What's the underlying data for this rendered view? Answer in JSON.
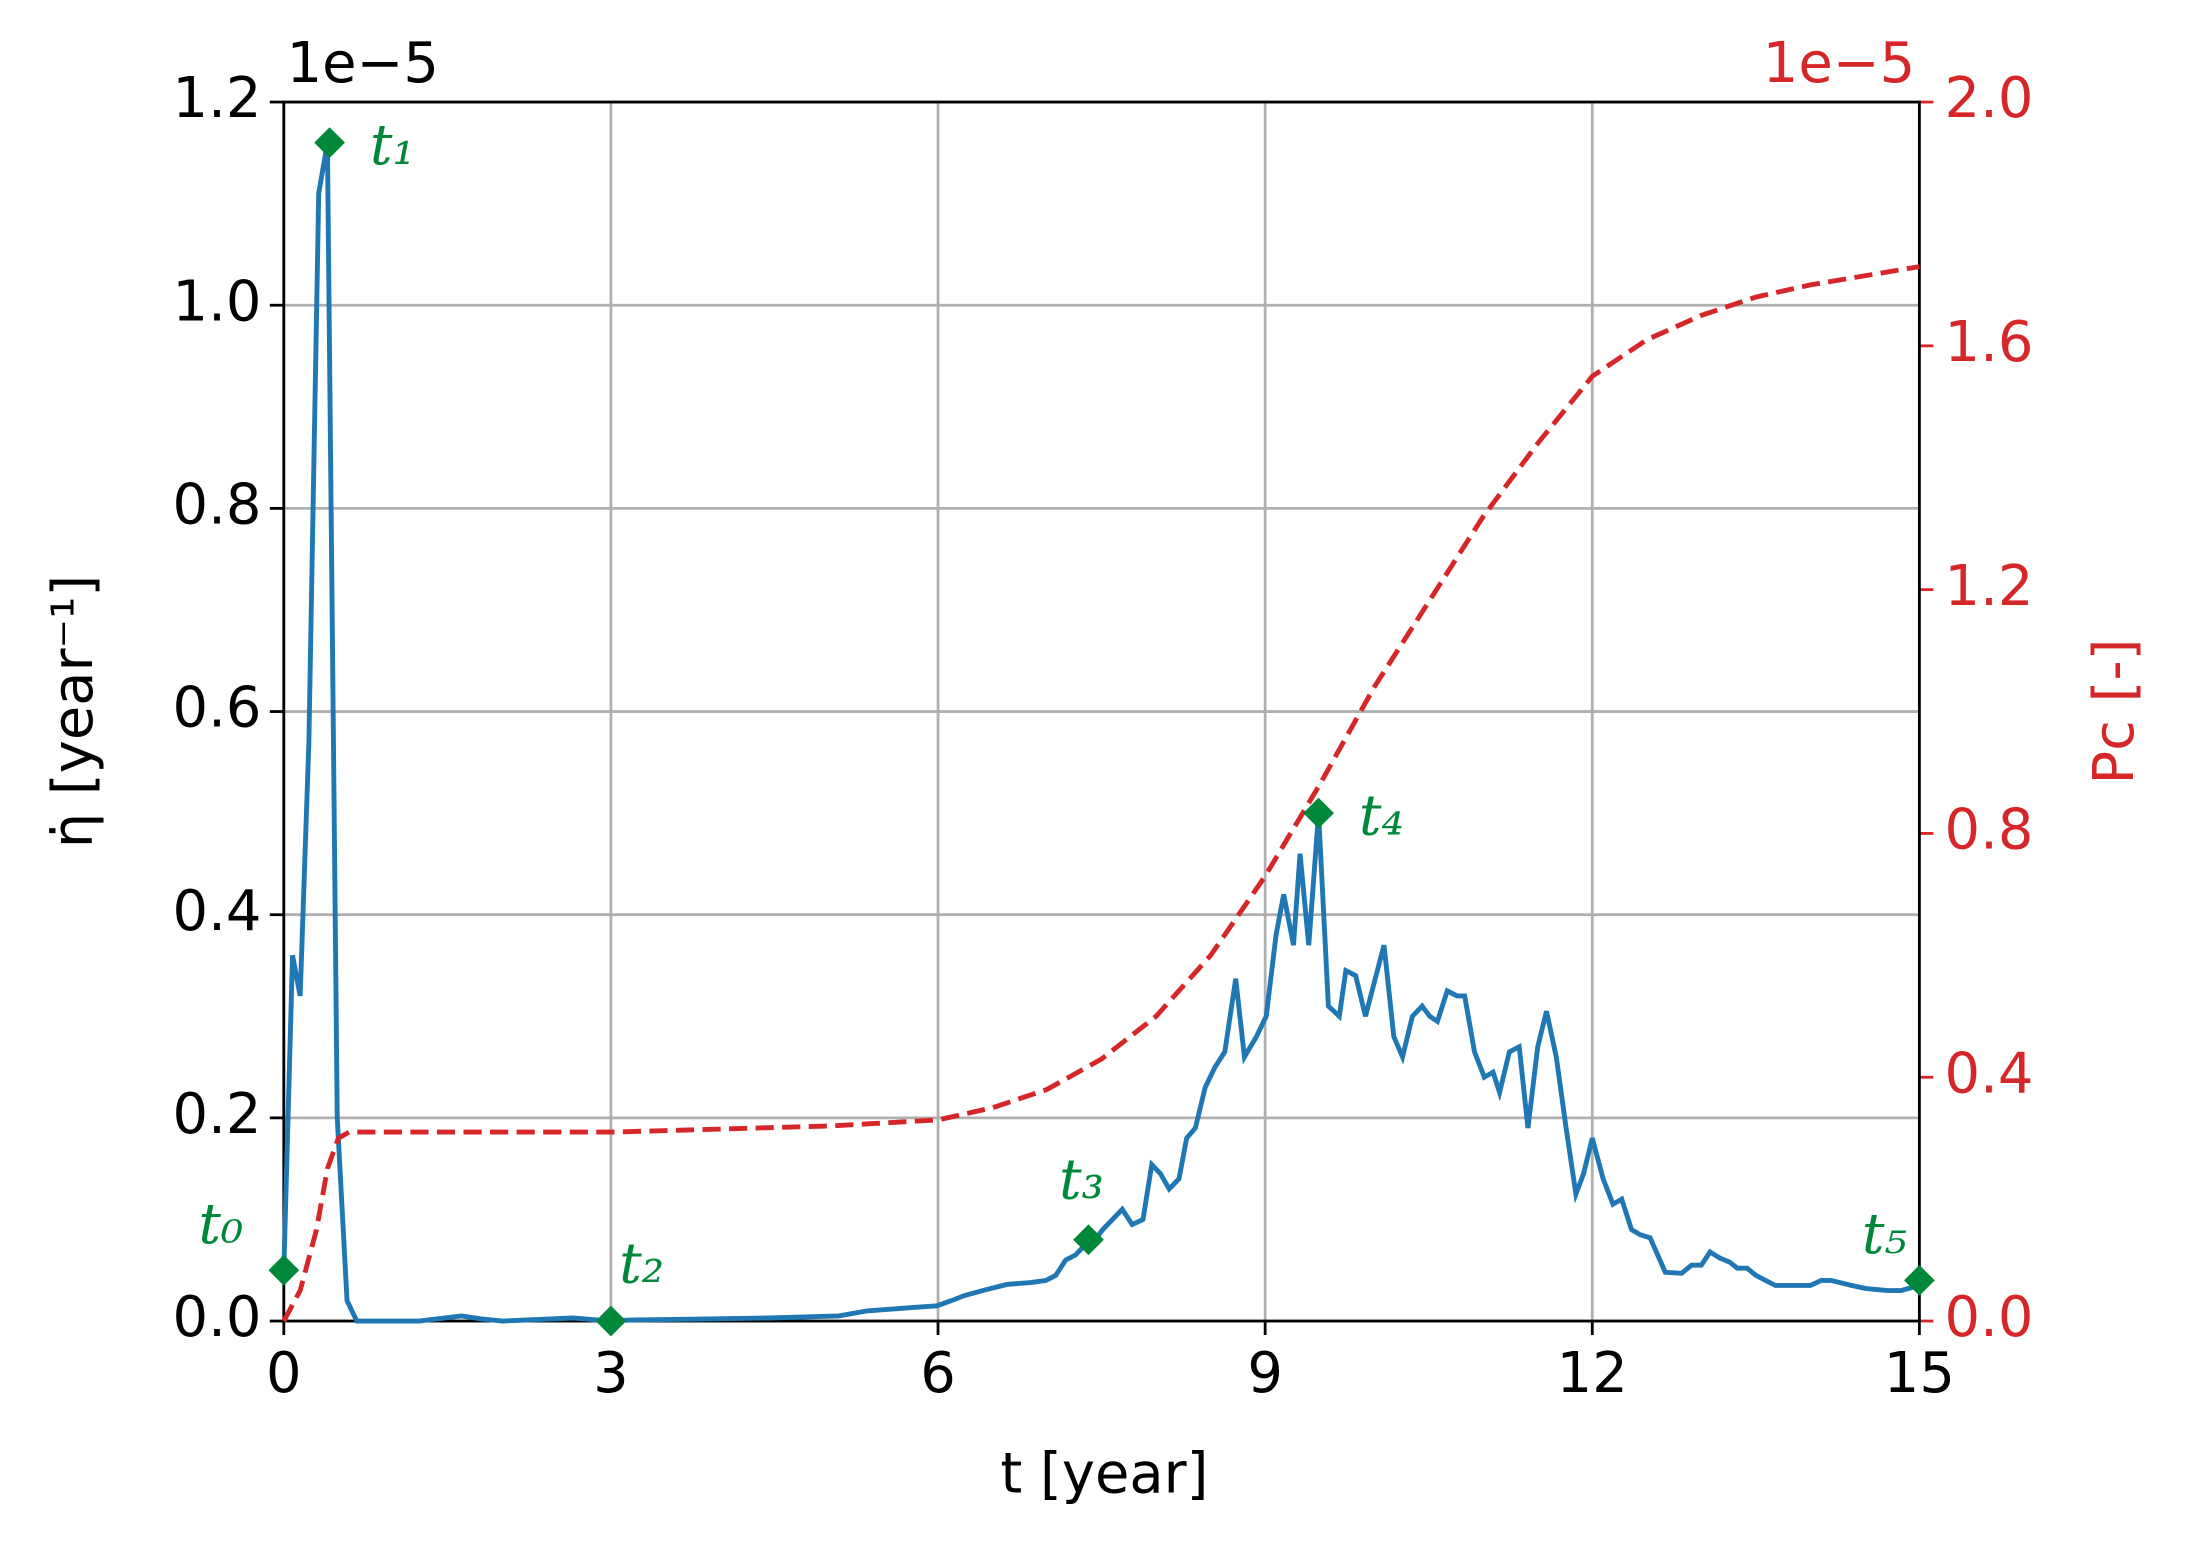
{
  "chart_data": {
    "type": "line",
    "x_label": "t [year]",
    "y_label": "η̇ [year⁻¹]",
    "y2_label": "Pc [-]",
    "y_offset_text": "1e−5",
    "y2_offset_text": "1e−5",
    "xlim": [
      0,
      15
    ],
    "xticks": [
      0,
      3,
      6,
      9,
      12,
      15
    ],
    "ylim": [
      0,
      1.2
    ],
    "yticks": [
      {
        "value": 0,
        "label": "0.0"
      },
      {
        "value": 0.2,
        "label": "0.2"
      },
      {
        "value": 0.4,
        "label": "0.4"
      },
      {
        "value": 0.6,
        "label": "0.6"
      },
      {
        "value": 0.8,
        "label": "0.8"
      },
      {
        "value": 1.0,
        "label": "1.0"
      },
      {
        "value": 1.2,
        "label": "1.2"
      }
    ],
    "y2lim": [
      0,
      2.0
    ],
    "y2ticks": [
      {
        "value": 0,
        "label": "0.0"
      },
      {
        "value": 0.4,
        "label": "0.4"
      },
      {
        "value": 0.8,
        "label": "0.8"
      },
      {
        "value": 1.2,
        "label": "1.2"
      },
      {
        "value": 1.6,
        "label": "1.6"
      },
      {
        "value": 2.0,
        "label": "2.0"
      }
    ],
    "y2_color": "#d62728",
    "grid": true,
    "series": [
      {
        "color": "#1f77b4",
        "dash": false,
        "x": [
          0,
          0.08,
          0.15,
          0.23,
          0.32,
          0.4,
          0.49,
          0.58,
          0.67,
          1.24,
          1.63,
          1.82,
          2.01,
          2.65,
          3,
          3.17,
          3.81,
          4.45,
          5.09,
          5.35,
          5.73,
          5.99,
          6.12,
          6.24,
          6.41,
          6.63,
          6.86,
          6.99,
          7.08,
          7.17,
          7.26,
          7.35,
          7.44,
          7.51,
          7.6,
          7.69,
          7.78,
          7.88,
          7.96,
          8.04,
          8.12,
          8.21,
          8.28,
          8.36,
          8.45,
          8.54,
          8.63,
          8.73,
          8.81,
          8.92,
          9.01,
          9.1,
          9.17,
          9.26,
          9.32,
          9.4,
          9.49,
          9.58,
          9.68,
          9.74,
          9.83,
          9.92,
          10.09,
          10.18,
          10.26,
          10.35,
          10.44,
          10.51,
          10.58,
          10.67,
          10.76,
          10.83,
          10.92,
          11.01,
          11.09,
          11.15,
          11.24,
          11.33,
          11.41,
          11.5,
          11.58,
          11.67,
          11.76,
          11.85,
          11.92,
          12,
          12.1,
          12.19,
          12.27,
          12.36,
          12.44,
          12.53,
          12.6,
          12.67,
          12.82,
          12.91,
          13,
          13.08,
          13.17,
          13.26,
          13.33,
          13.42,
          13.5,
          13.59,
          13.68,
          14,
          14.1,
          14.19,
          14.38,
          14.51,
          14.71,
          14.83,
          15
        ],
        "values": [
          0.05,
          0.36,
          0.32,
          0.57,
          1.11,
          1.16,
          0.2,
          0.02,
          0,
          0,
          0.005,
          0.002,
          0,
          0.003,
          0,
          0.001,
          0.002,
          0.003,
          0.005,
          0.01,
          0.013,
          0.015,
          0.02,
          0.025,
          0.03,
          0.036,
          0.038,
          0.04,
          0.045,
          0.06,
          0.065,
          0.075,
          0.08,
          0.09,
          0.1,
          0.11,
          0.095,
          0.1,
          0.154,
          0.145,
          0.13,
          0.14,
          0.18,
          0.19,
          0.23,
          0.25,
          0.265,
          0.337,
          0.26,
          0.28,
          0.3,
          0.38,
          0.42,
          0.37,
          0.46,
          0.37,
          0.5,
          0.31,
          0.3,
          0.345,
          0.34,
          0.3,
          0.37,
          0.28,
          0.26,
          0.3,
          0.31,
          0.3,
          0.295,
          0.325,
          0.32,
          0.32,
          0.265,
          0.24,
          0.245,
          0.225,
          0.265,
          0.27,
          0.19,
          0.27,
          0.305,
          0.26,
          0.19,
          0.125,
          0.145,
          0.18,
          0.14,
          0.115,
          0.12,
          0.09,
          0.085,
          0.082,
          0.065,
          0.048,
          0.047,
          0.055,
          0.055,
          0.068,
          0.062,
          0.058,
          0.052,
          0.052,
          0.045,
          0.04,
          0.035,
          0.035,
          0.04,
          0.04,
          0.035,
          0.032,
          0.03,
          0.03,
          0.035
        ]
      },
      {
        "color": "#d62728",
        "dash": true,
        "axis": "y2",
        "x": [
          0,
          0.15,
          0.3,
          0.4,
          0.5,
          0.6,
          1,
          3,
          5,
          6,
          6.5,
          7,
          7.5,
          8,
          8.5,
          9,
          9.5,
          10,
          10.5,
          11,
          11.5,
          12,
          12.5,
          13,
          13.5,
          14,
          15
        ],
        "values": [
          0,
          0.05,
          0.15,
          0.25,
          0.3,
          0.31,
          0.31,
          0.31,
          0.32,
          0.33,
          0.35,
          0.38,
          0.43,
          0.5,
          0.6,
          0.73,
          0.88,
          1.04,
          1.18,
          1.32,
          1.44,
          1.55,
          1.61,
          1.65,
          1.68,
          1.7,
          1.73
        ]
      }
    ],
    "markers": {
      "color": "#00883a",
      "labels": [
        "t₀",
        "t₁",
        "t₂",
        "t₃",
        "t₄",
        "t₅"
      ],
      "x": [
        0,
        0.42,
        3,
        7.38,
        9.49,
        15
      ],
      "values": [
        0.05,
        1.16,
        0,
        0.08,
        0.5,
        0.04
      ]
    }
  }
}
